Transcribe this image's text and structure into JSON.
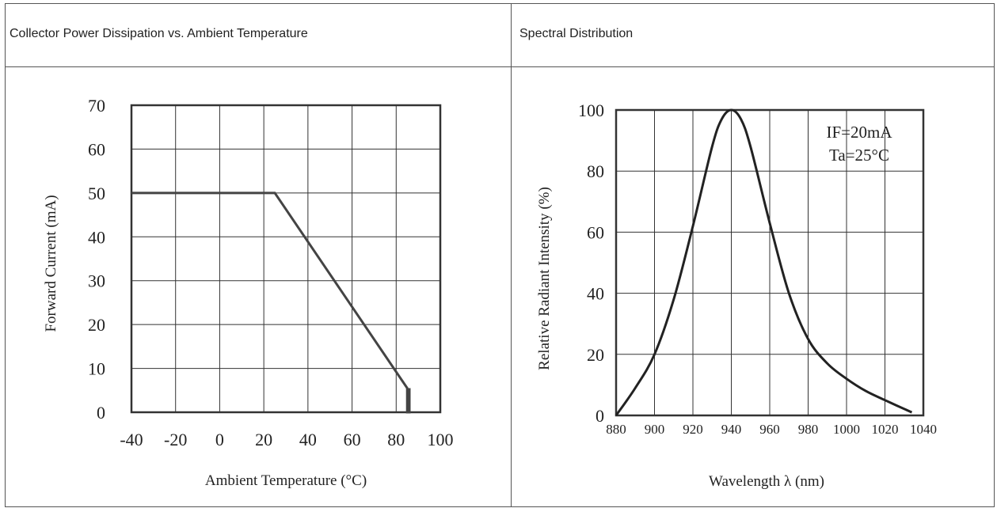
{
  "headers": {
    "left": "Collector Power Dissipation vs. Ambient Temperature",
    "right": "Spectral Distribution"
  },
  "chart_data": [
    {
      "type": "line",
      "xlabel": "Ambient Temperature (°C)",
      "ylabel": "Forward Current (mA)",
      "xlim": [
        -40,
        100
      ],
      "ylim": [
        0,
        70
      ],
      "xticks": [
        "-40",
        "-20",
        "0",
        "20",
        "40",
        "60",
        "80",
        "100"
      ],
      "yticks": [
        "70",
        "60",
        "50",
        "40",
        "30",
        "20",
        "10",
        "0"
      ],
      "grid": true,
      "series": [
        {
          "x": [
            -40,
            25,
            85,
            85,
            86,
            86
          ],
          "y": [
            50,
            50,
            5.5,
            0,
            0,
            5.5
          ]
        }
      ]
    },
    {
      "type": "line",
      "xlabel": "Wavelength λ (nm)",
      "ylabel": "Relative Radiant Intensity (%)",
      "xlim": [
        880,
        1040
      ],
      "ylim": [
        0,
        100
      ],
      "xticks": [
        "880",
        "900",
        "920",
        "940",
        "960",
        "980",
        "1000",
        "1020",
        "1040"
      ],
      "yticks": [
        "100",
        "80",
        "60",
        "40",
        "20",
        "0"
      ],
      "grid": true,
      "annotations": [
        "IF=20mA",
        "Ta=25°C"
      ],
      "series": [
        {
          "x": [
            880,
            890,
            900,
            910,
            920,
            930,
            935,
            940,
            945,
            950,
            960,
            970,
            980,
            990,
            1000,
            1010,
            1020,
            1034
          ],
          "y": [
            0,
            9,
            20,
            38,
            62,
            88,
            97,
            100,
            97,
            88,
            63,
            40,
            25,
            17,
            12,
            8,
            5,
            1
          ]
        }
      ]
    }
  ]
}
